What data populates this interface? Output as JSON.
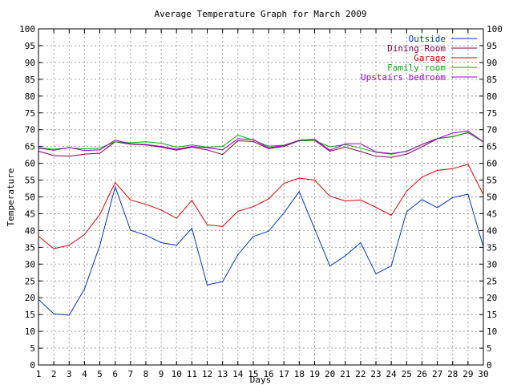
{
  "chart_data": {
    "type": "line",
    "title": "Average Temperature Graph for March 2009",
    "xlabel": "Days",
    "ylabel": "Temperature",
    "xlim": [
      1,
      30
    ],
    "ylim": [
      0,
      100
    ],
    "x_ticks": [
      1,
      2,
      3,
      4,
      5,
      6,
      7,
      8,
      9,
      10,
      11,
      12,
      13,
      14,
      15,
      16,
      17,
      18,
      19,
      20,
      21,
      22,
      23,
      24,
      25,
      26,
      27,
      28,
      29,
      30
    ],
    "y_ticks": [
      0,
      5,
      10,
      15,
      20,
      25,
      30,
      35,
      40,
      45,
      50,
      55,
      60,
      65,
      70,
      75,
      80,
      85,
      90,
      95,
      100
    ],
    "grid": true,
    "legend_position": "top-right",
    "x": [
      1,
      2,
      3,
      4,
      5,
      6,
      7,
      8,
      9,
      10,
      11,
      12,
      13,
      14,
      15,
      16,
      17,
      18,
      19,
      20,
      21,
      22,
      23,
      24,
      25,
      26,
      27,
      28,
      29,
      30
    ],
    "series": [
      {
        "name": "Outside",
        "color": "#0033cc",
        "values": [
          19.5,
          15.2,
          14.8,
          22.6,
          35.6,
          53.0,
          40.1,
          38.6,
          36.4,
          35.6,
          40.7,
          23.8,
          24.8,
          32.8,
          38.2,
          39.8,
          45.2,
          51.6,
          40.5,
          29.4,
          32.5,
          36.4,
          27.1,
          29.5,
          45.6,
          49.2,
          46.8,
          49.8,
          50.8,
          35.1
        ]
      },
      {
        "name": "Dining Room",
        "color": "#800040",
        "values": [
          63.6,
          62.3,
          62.1,
          62.7,
          63.0,
          66.4,
          65.7,
          65.5,
          64.8,
          63.9,
          64.8,
          64.0,
          62.6,
          66.7,
          66.5,
          64.4,
          65.0,
          66.7,
          66.8,
          63.6,
          64.8,
          63.5,
          62.1,
          61.8,
          62.7,
          64.9,
          67.3,
          68.0,
          69.1,
          66.4
        ]
      },
      {
        "name": "Garage",
        "color": "#dd0000",
        "values": [
          38.3,
          34.6,
          35.6,
          38.8,
          44.8,
          54.3,
          49.1,
          47.8,
          46.1,
          43.6,
          49.0,
          41.7,
          41.2,
          45.7,
          47.1,
          49.4,
          54.0,
          55.6,
          55.0,
          50.2,
          48.8,
          49.1,
          46.9,
          44.5,
          51.7,
          55.9,
          57.9,
          58.4,
          59.7,
          50.7
        ]
      },
      {
        "name": "Family room",
        "color": "#00aa00",
        "values": [
          64.6,
          64.2,
          64.6,
          64.3,
          64.5,
          66.4,
          66.1,
          66.4,
          66.0,
          64.8,
          65.5,
          64.8,
          65.0,
          68.4,
          66.9,
          65.1,
          65.4,
          66.7,
          66.8,
          64.9,
          65.6,
          64.5,
          63.3,
          62.7,
          63.6,
          65.6,
          67.4,
          67.9,
          69.2,
          66.3
        ]
      },
      {
        "name": "Upstairs bedroom",
        "color": "#9900cc",
        "values": [
          64.5,
          63.9,
          64.7,
          63.8,
          64.0,
          66.9,
          65.8,
          65.6,
          65.0,
          64.2,
          65.0,
          64.6,
          64.0,
          67.3,
          67.1,
          64.6,
          65.3,
          66.9,
          67.2,
          63.9,
          65.8,
          65.8,
          63.4,
          62.9,
          63.5,
          65.6,
          67.3,
          69.0,
          69.6,
          66.4
        ]
      }
    ]
  }
}
